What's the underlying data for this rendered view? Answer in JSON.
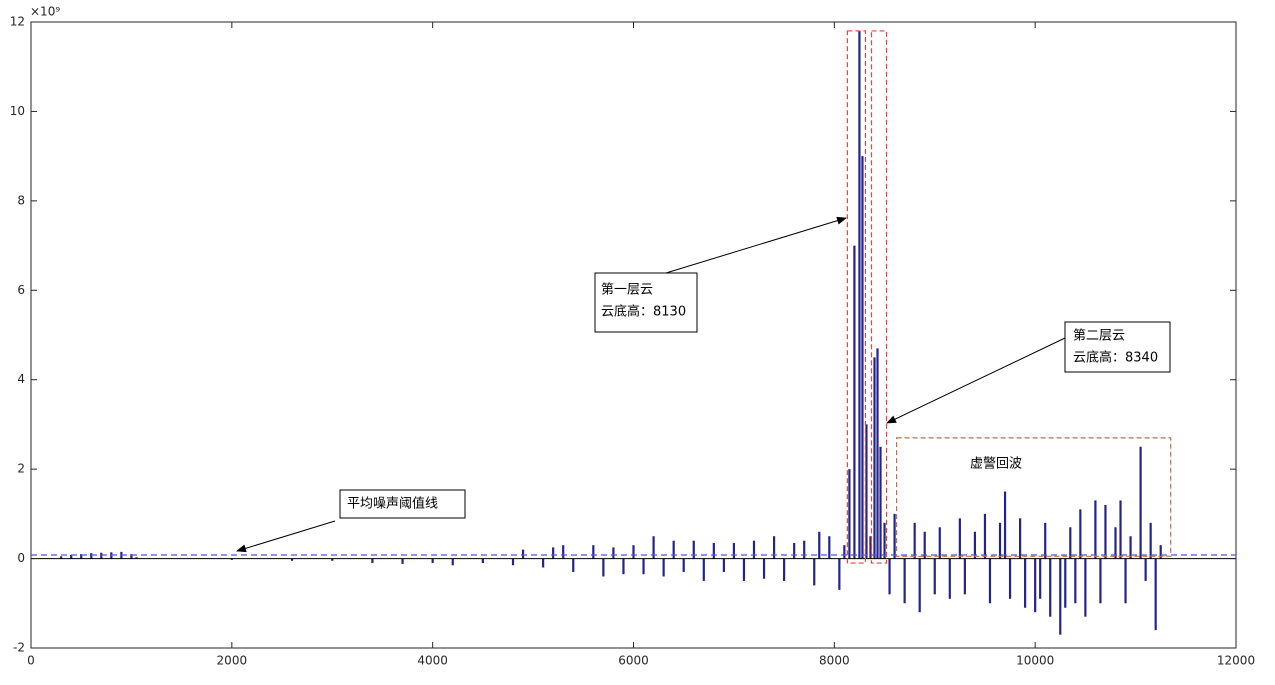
{
  "chart_data": {
    "type": "stem",
    "y_exponent": "×10⁹",
    "xlim": [
      0,
      12000
    ],
    "ylim": [
      -2,
      12
    ],
    "xticks": [
      0,
      2000,
      4000,
      6000,
      8000,
      10000,
      12000
    ],
    "yticks": [
      -2,
      0,
      2,
      4,
      6,
      8,
      10,
      12
    ],
    "color": "#23238a",
    "x": [
      300,
      400,
      500,
      600,
      700,
      800,
      900,
      1000,
      1050,
      2000,
      2600,
      3000,
      3400,
      3700,
      4000,
      4200,
      4500,
      4800,
      4900,
      5100,
      5200,
      5300,
      5400,
      5600,
      5700,
      5800,
      5900,
      6000,
      6100,
      6200,
      6300,
      6400,
      6500,
      6600,
      6700,
      6800,
      6900,
      7000,
      7100,
      7200,
      7300,
      7400,
      7500,
      7600,
      7700,
      7800,
      7850,
      7950,
      8050,
      8100,
      8150,
      8200,
      8250,
      8280,
      8320,
      8360,
      8400,
      8430,
      8460,
      8500,
      8550,
      8600,
      8700,
      8800,
      8850,
      8900,
      9000,
      9050,
      9150,
      9250,
      9300,
      9400,
      9500,
      9550,
      9650,
      9700,
      9750,
      9850,
      9900,
      10000,
      10050,
      10100,
      10150,
      10250,
      10300,
      10350,
      10400,
      10450,
      10500,
      10600,
      10650,
      10700,
      10800,
      10850,
      10900,
      10950,
      11050,
      11100,
      11150,
      11200,
      11250
    ],
    "values": [
      0.05,
      0.08,
      0.1,
      0.12,
      0.13,
      0.14,
      0.15,
      0.1,
      0.03,
      -0.03,
      -0.05,
      -0.05,
      -0.1,
      -0.12,
      -0.1,
      -0.15,
      -0.1,
      -0.15,
      0.2,
      -0.2,
      0.25,
      0.3,
      -0.3,
      0.3,
      -0.4,
      0.25,
      -0.35,
      0.3,
      -0.35,
      0.5,
      -0.4,
      0.4,
      -0.3,
      0.4,
      -0.5,
      0.35,
      -0.3,
      0.35,
      -0.5,
      0.4,
      -0.45,
      0.5,
      -0.5,
      0.35,
      0.4,
      -0.6,
      0.6,
      0.5,
      -0.7,
      0.3,
      2,
      7,
      11.8,
      9,
      3,
      0.5,
      4.5,
      4.7,
      2.5,
      0.8,
      -0.8,
      1,
      -1,
      0.8,
      -1.2,
      0.6,
      -0.8,
      0.7,
      -0.9,
      0.9,
      -0.8,
      0.6,
      1,
      -1,
      0.8,
      1.5,
      -0.9,
      0.9,
      -1.1,
      -1.2,
      -0.9,
      0.8,
      -1.3,
      -1.7,
      -1.1,
      0.7,
      -1,
      1.1,
      -1.3,
      1.3,
      -1,
      1.2,
      0.7,
      1.3,
      -1,
      0.5,
      2.5,
      -0.5,
      0.8,
      -1.6,
      0.3
    ],
    "threshold": {
      "value": 0.08,
      "color": "#4b5bd6"
    },
    "highlight_boxes": [
      {
        "x": [
          8130,
          8310
        ],
        "y": [
          -0.1,
          11.8
        ],
        "color": "#e8453c"
      },
      {
        "x": [
          8370,
          8520
        ],
        "y": [
          -0.1,
          11.8
        ],
        "color": "#e8453c"
      },
      {
        "x": [
          8620,
          11350
        ],
        "y": [
          0.05,
          2.7
        ],
        "color": "#c0704a"
      }
    ],
    "annotations": [
      {
        "lines": [
          "第一层云",
          "云底高：8130"
        ]
      },
      {
        "lines": [
          "第二层云",
          "云底高：8340"
        ]
      },
      {
        "lines": [
          "虚警回波"
        ]
      },
      {
        "lines": [
          "平均噪声阈值线"
        ]
      }
    ]
  }
}
